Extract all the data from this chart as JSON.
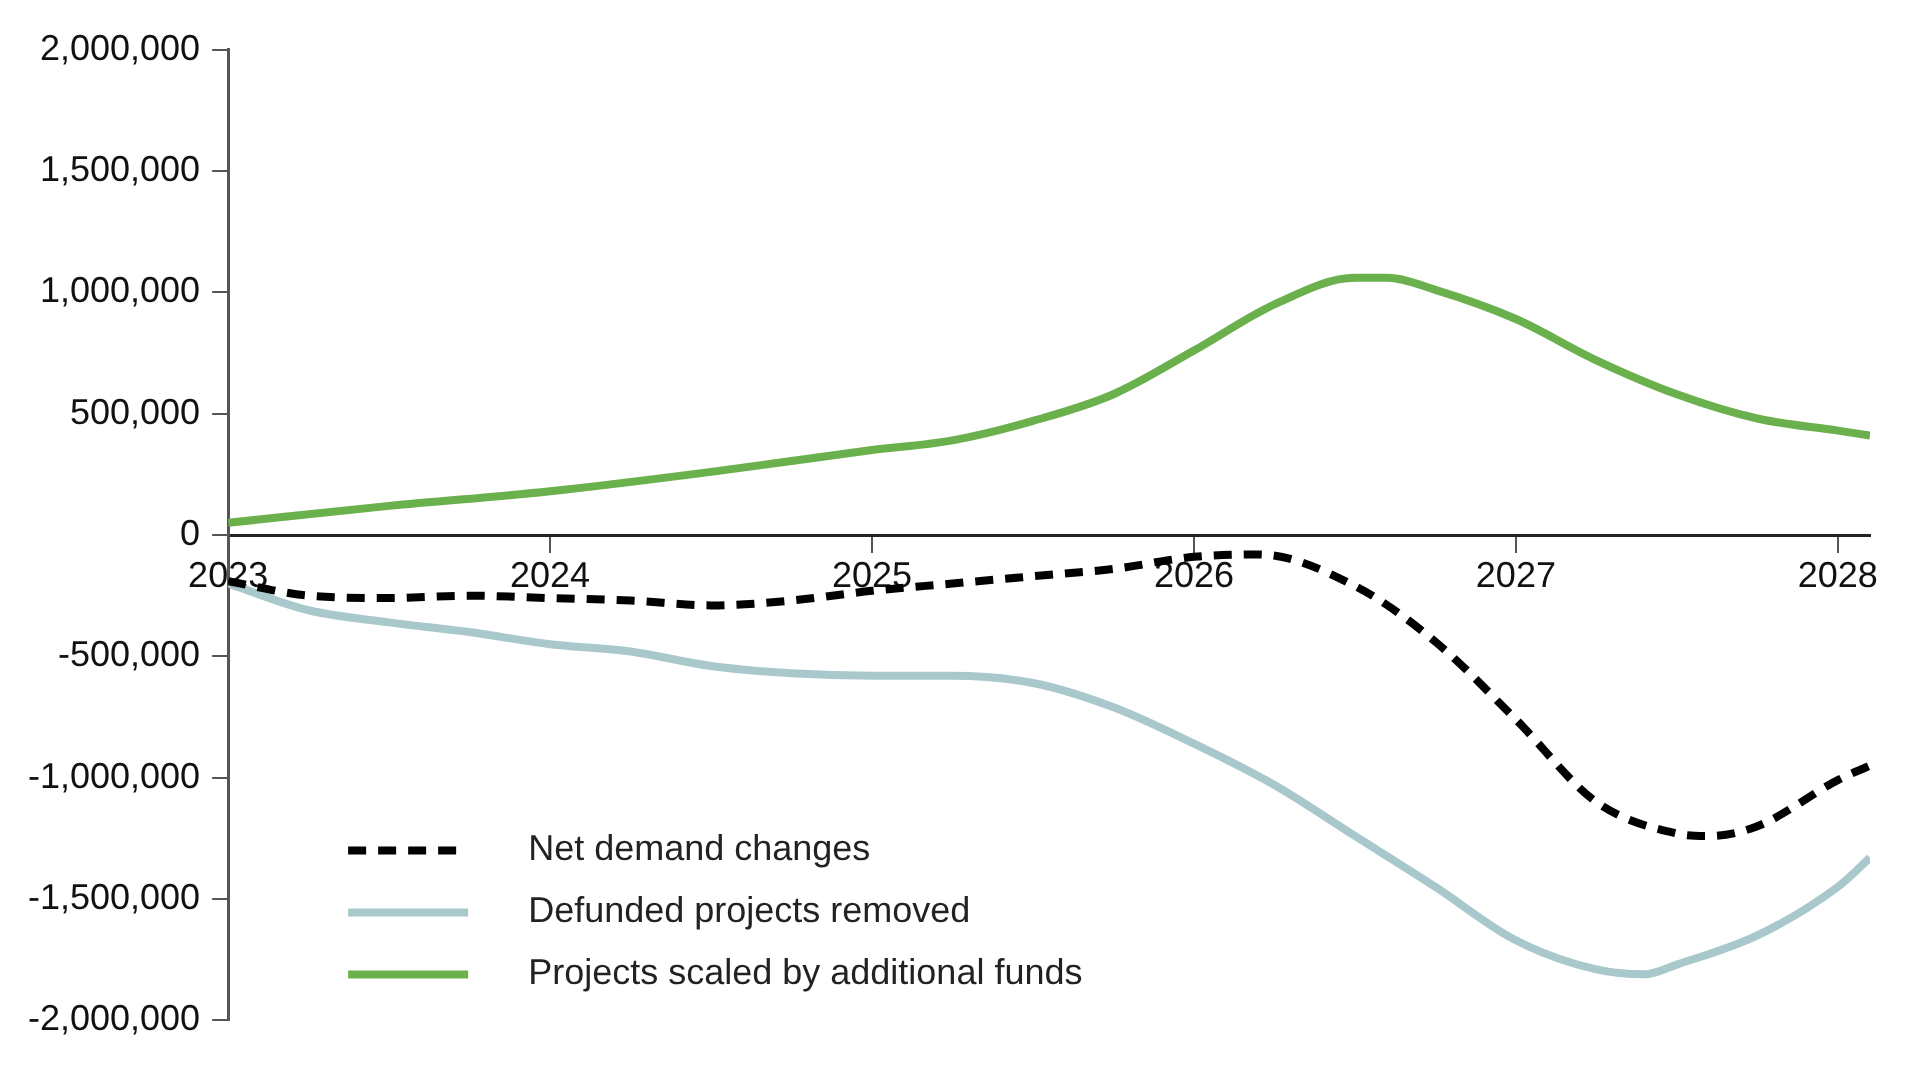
{
  "chart_data": {
    "type": "line",
    "xlim": [
      2023,
      2028.1
    ],
    "xticks": [
      2023,
      2024,
      2025,
      2026,
      2027,
      2028
    ],
    "ylim": [
      -2000000,
      2000000
    ],
    "yticks": [
      {
        "value": -2000000,
        "label": "-2,000,000"
      },
      {
        "value": -1500000,
        "label": "-1,500,000"
      },
      {
        "value": -1000000,
        "label": "-1,000,000"
      },
      {
        "value": -500000,
        "label": "-500,000"
      },
      {
        "value": 0,
        "label": "0"
      },
      {
        "value": 500000,
        "label": "500,000"
      },
      {
        "value": 1000000,
        "label": "1,000,000"
      },
      {
        "value": 1500000,
        "label": "1,500,000"
      },
      {
        "value": 2000000,
        "label": "2,000,000"
      }
    ],
    "grid": false,
    "legend": "bottom left",
    "marker": "none",
    "series": [
      {
        "name": "Net demand changes",
        "color": "#000000",
        "line_style": "dashed",
        "x": [
          2023,
          2023.25,
          2023.5,
          2023.75,
          2024,
          2024.25,
          2024.5,
          2024.75,
          2025,
          2025.25,
          2025.5,
          2025.75,
          2026,
          2026.2,
          2026.5,
          2026.75,
          2027,
          2027.25,
          2027.5,
          2027.6,
          2027.75,
          2028,
          2028.1
        ],
        "values": [
          -190000,
          -250000,
          -260000,
          -250000,
          -260000,
          -270000,
          -290000,
          -270000,
          -230000,
          -200000,
          -170000,
          -140000,
          -90000,
          -80000,
          -210000,
          -440000,
          -760000,
          -1100000,
          -1230000,
          -1240000,
          -1200000,
          -1010000,
          -950000
        ]
      },
      {
        "name": "Defunded projects removed",
        "color": "#a9c8cc",
        "line_style": "solid",
        "x": [
          2023,
          2023.25,
          2023.5,
          2023.75,
          2024,
          2024.25,
          2024.5,
          2024.75,
          2025,
          2025.25,
          2025.5,
          2025.75,
          2026,
          2026.25,
          2026.5,
          2026.75,
          2027,
          2027.25,
          2027.4,
          2027.5,
          2027.75,
          2028,
          2028.1
        ],
        "values": [
          -200000,
          -310000,
          -360000,
          -400000,
          -450000,
          -480000,
          -540000,
          -570000,
          -580000,
          -580000,
          -610000,
          -710000,
          -860000,
          -1030000,
          -1240000,
          -1450000,
          -1670000,
          -1790000,
          -1810000,
          -1770000,
          -1650000,
          -1450000,
          -1330000
        ]
      },
      {
        "name": "Projects scaled by additional funds",
        "color": "#6ab04c",
        "line_style": "solid",
        "x": [
          2023,
          2023.5,
          2024,
          2024.5,
          2025,
          2025.25,
          2025.5,
          2025.75,
          2026,
          2026.25,
          2026.5,
          2026.6,
          2026.75,
          2027,
          2027.25,
          2027.5,
          2027.75,
          2028,
          2028.1
        ],
        "values": [
          50000,
          120000,
          180000,
          260000,
          350000,
          390000,
          470000,
          580000,
          760000,
          950000,
          1060000,
          1060000,
          1010000,
          890000,
          720000,
          580000,
          480000,
          430000,
          410000
        ]
      }
    ]
  }
}
